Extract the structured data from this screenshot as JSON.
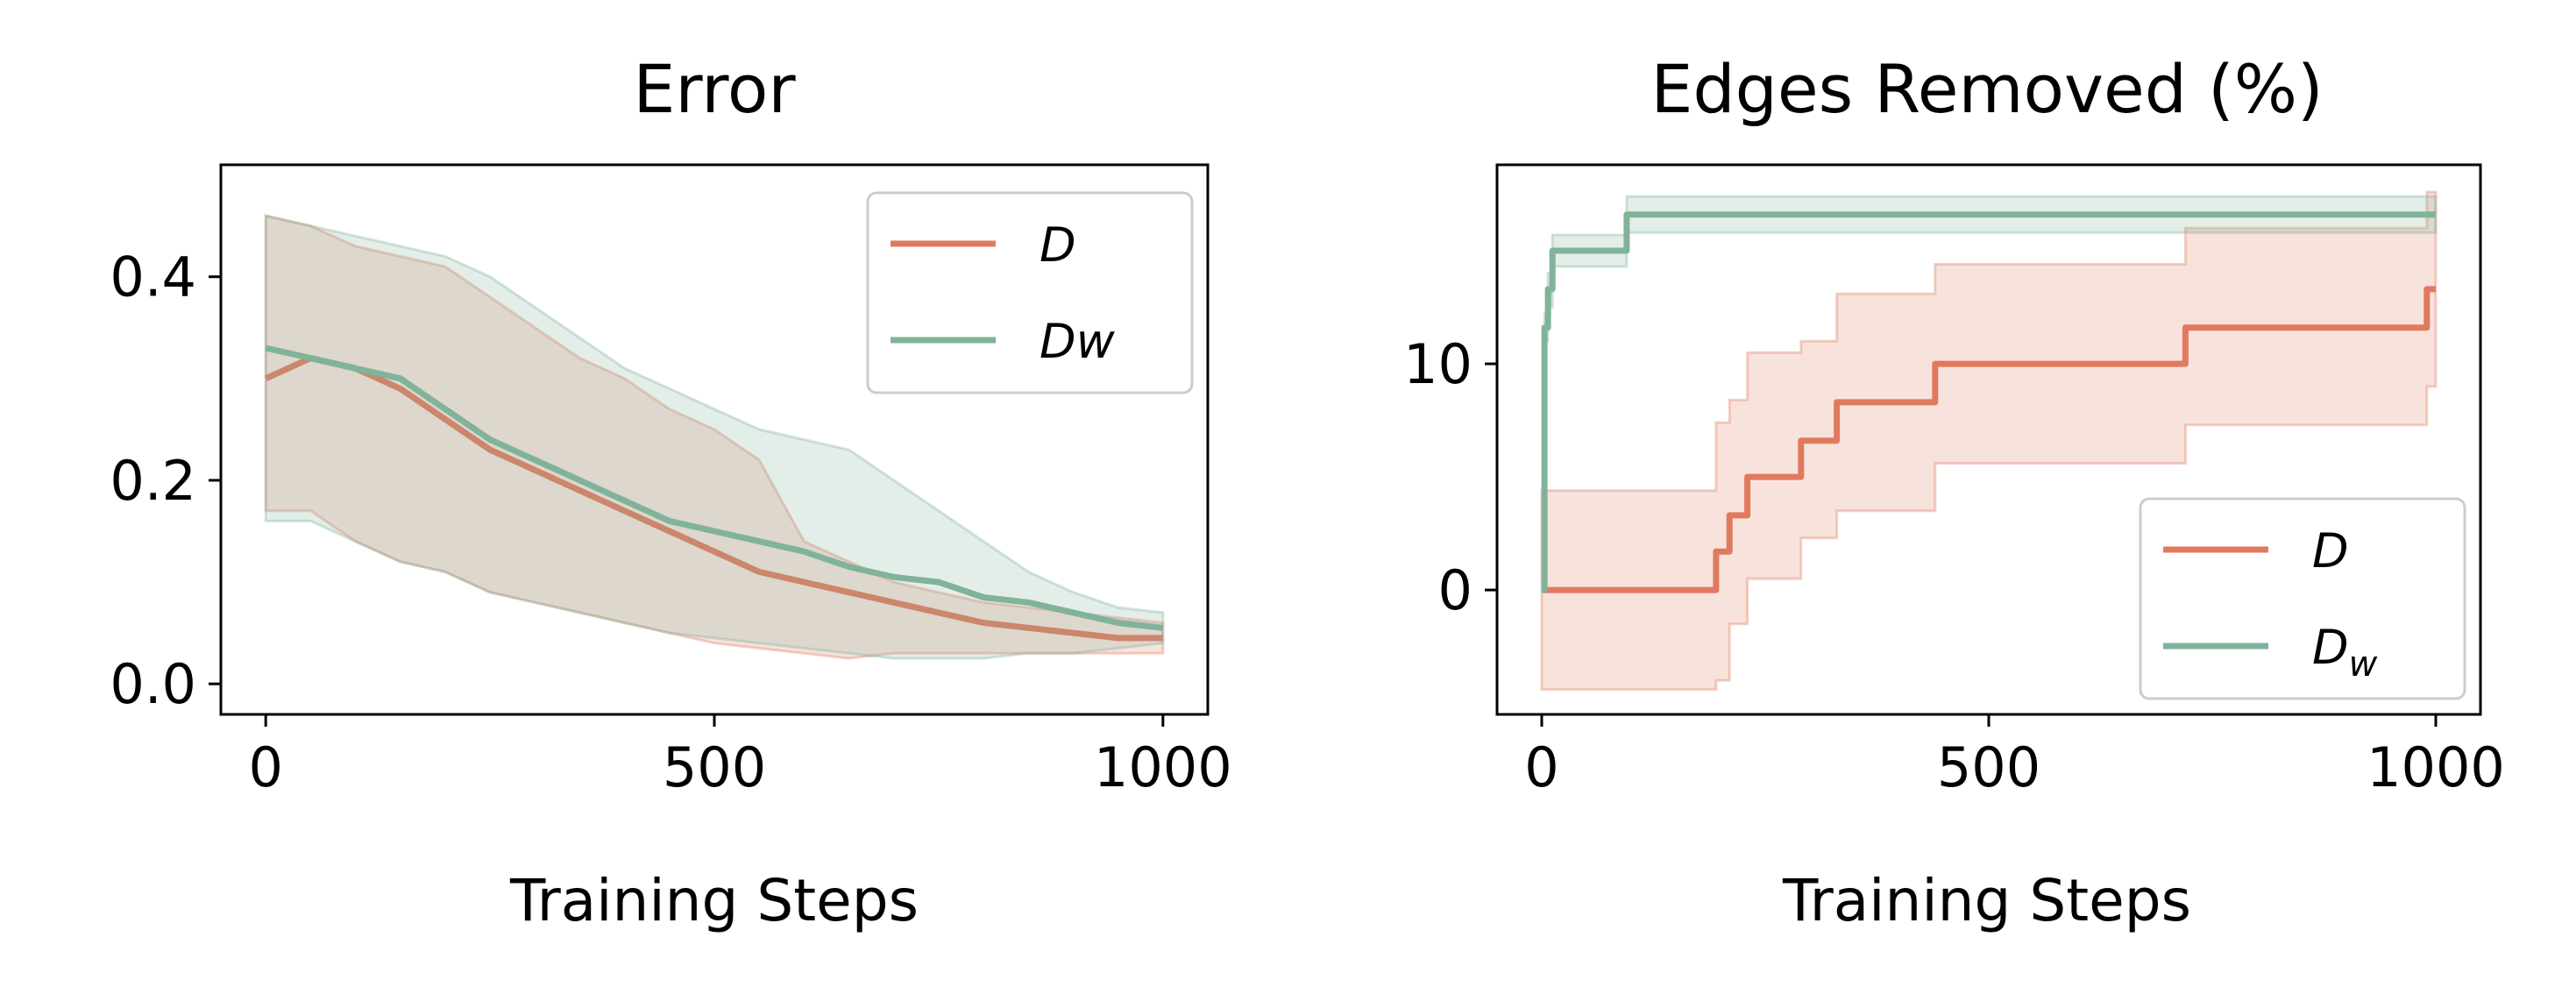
{
  "figure": {
    "colors": {
      "D": "#e07a5f",
      "Dw": "#81b29a"
    }
  },
  "chart_data": [
    {
      "type": "line",
      "title": "Error",
      "xlabel": "Training Steps",
      "ylabel": "",
      "xlim": [
        -50,
        1050
      ],
      "ylim": [
        -0.03,
        0.51
      ],
      "xticks": [
        0,
        500,
        1000
      ],
      "xtick_labels": [
        "0",
        "500",
        "1000"
      ],
      "yticks": [
        0.0,
        0.2,
        0.4
      ],
      "ytick_labels": [
        "0.0",
        "0.2",
        "0.4"
      ],
      "grid": false,
      "legend": {
        "placement": "top-right",
        "entries": [
          "D",
          "Dw"
        ]
      },
      "x": [
        0,
        50,
        100,
        150,
        200,
        250,
        300,
        350,
        400,
        450,
        500,
        550,
        600,
        650,
        700,
        750,
        800,
        850,
        900,
        950,
        1000
      ],
      "series": [
        {
          "name": "D",
          "color": "#e07a5f",
          "values": [
            0.3,
            0.32,
            0.31,
            0.29,
            0.26,
            0.23,
            0.21,
            0.19,
            0.17,
            0.15,
            0.13,
            0.11,
            0.1,
            0.09,
            0.08,
            0.07,
            0.06,
            0.055,
            0.05,
            0.045,
            0.045
          ],
          "lower": [
            0.17,
            0.17,
            0.14,
            0.12,
            0.11,
            0.09,
            0.08,
            0.07,
            0.06,
            0.05,
            0.04,
            0.035,
            0.03,
            0.025,
            0.03,
            0.03,
            0.03,
            0.03,
            0.03,
            0.03,
            0.03
          ],
          "upper": [
            0.46,
            0.45,
            0.43,
            0.42,
            0.41,
            0.38,
            0.35,
            0.32,
            0.3,
            0.27,
            0.25,
            0.22,
            0.14,
            0.12,
            0.1,
            0.09,
            0.08,
            0.075,
            0.07,
            0.065,
            0.06
          ]
        },
        {
          "name": "Dw",
          "color": "#81b29a",
          "values": [
            0.33,
            0.32,
            0.31,
            0.3,
            0.27,
            0.24,
            0.22,
            0.2,
            0.18,
            0.16,
            0.15,
            0.14,
            0.13,
            0.115,
            0.105,
            0.1,
            0.085,
            0.08,
            0.07,
            0.06,
            0.055
          ],
          "lower": [
            0.16,
            0.16,
            0.14,
            0.12,
            0.11,
            0.09,
            0.08,
            0.07,
            0.06,
            0.05,
            0.045,
            0.04,
            0.035,
            0.03,
            0.025,
            0.025,
            0.025,
            0.03,
            0.03,
            0.035,
            0.04
          ],
          "upper": [
            0.46,
            0.45,
            0.44,
            0.43,
            0.42,
            0.4,
            0.37,
            0.34,
            0.31,
            0.29,
            0.27,
            0.25,
            0.24,
            0.23,
            0.2,
            0.17,
            0.14,
            0.11,
            0.09,
            0.075,
            0.07
          ]
        }
      ]
    },
    {
      "type": "line",
      "title": "Edges Removed (%)",
      "xlabel": "Training Steps",
      "ylabel": "",
      "xlim": [
        -50,
        1050
      ],
      "ylim": [
        -5.5,
        18.8
      ],
      "xticks": [
        0,
        500,
        1000
      ],
      "xtick_labels": [
        "0",
        "500",
        "1000"
      ],
      "yticks": [
        0,
        10
      ],
      "ytick_labels": [
        "0",
        "10"
      ],
      "grid": false,
      "legend": {
        "placement": "bottom-right",
        "entries": [
          "D",
          "D_w"
        ]
      },
      "step": true,
      "series": [
        {
          "name": "D",
          "color": "#e07a5f",
          "x": [
            0,
            195,
            210,
            230,
            290,
            330,
            440,
            720,
            990,
            1000
          ],
          "values": [
            0,
            1.7,
            3.3,
            5.0,
            6.6,
            8.3,
            10.0,
            11.6,
            13.3,
            13.3
          ],
          "lower": [
            -4.4,
            -4.0,
            -1.5,
            0.5,
            2.3,
            3.5,
            5.6,
            7.3,
            9.0,
            9.0
          ],
          "upper": [
            4.4,
            7.4,
            8.4,
            10.5,
            11.0,
            13.1,
            14.4,
            16.0,
            17.6,
            17.6
          ]
        },
        {
          "name": "D_w",
          "color": "#81b29a",
          "x": [
            0,
            3,
            7,
            12,
            95,
            1000
          ],
          "values": [
            0,
            11.6,
            13.3,
            15.0,
            16.6,
            16.6
          ],
          "lower": [
            0,
            11.0,
            12.5,
            14.3,
            15.8,
            15.8
          ],
          "upper": [
            0,
            12.2,
            14.0,
            15.7,
            17.4,
            17.4
          ]
        }
      ]
    }
  ]
}
